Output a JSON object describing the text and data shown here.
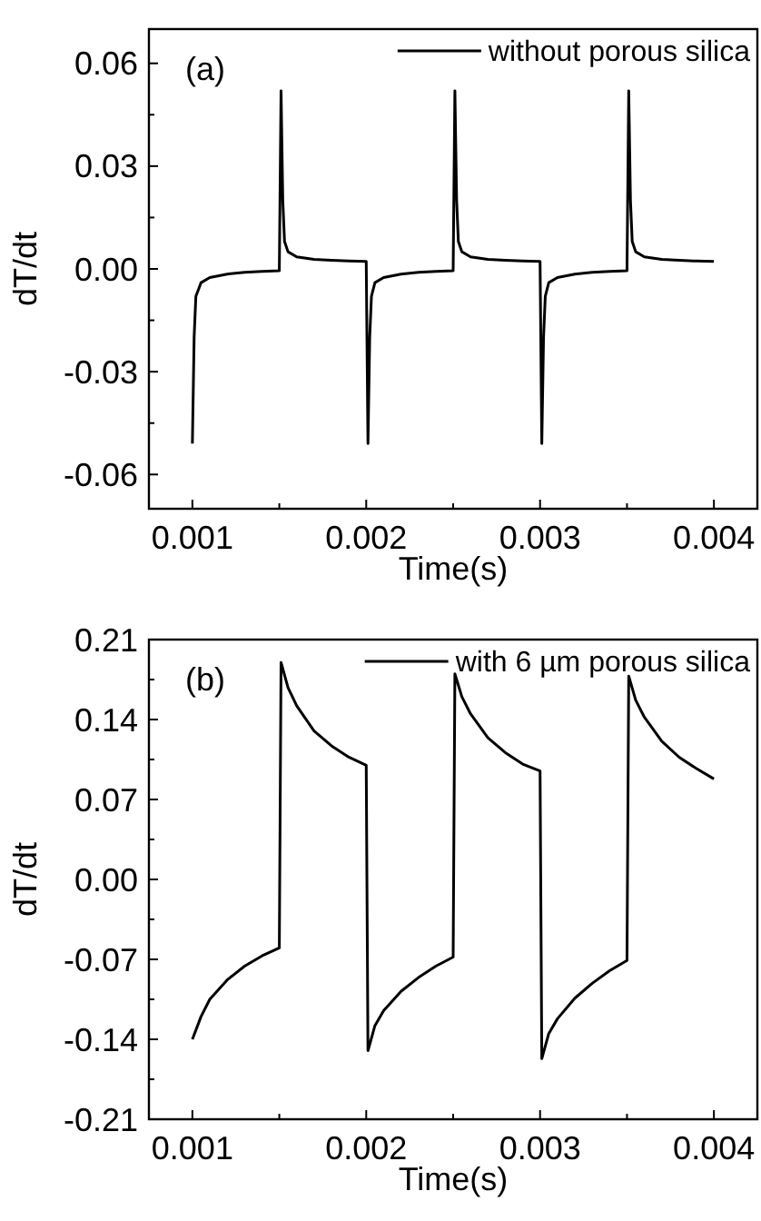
{
  "chart_data": [
    {
      "type": "line",
      "xlabel": "Time(s)",
      "ylabel": "dT/dt",
      "annotations": [
        "(a)"
      ],
      "legend": "top right",
      "xlim": [
        0.00075,
        0.00425
      ],
      "ylim": [
        -0.07,
        0.07
      ],
      "xticks": [
        0.001,
        {
          "value": 0.0015,
          "label": null
        },
        0.002,
        {
          "value": 0.0025,
          "label": null
        },
        0.003,
        {
          "value": 0.0035,
          "label": null
        },
        0.004
      ],
      "yticks": [
        -0.06,
        {
          "value": -0.045,
          "label": null
        },
        -0.03,
        {
          "value": -0.015,
          "label": null
        },
        {
          "value": 0,
          "label": "0.00"
        },
        {
          "value": 0.015,
          "label": null
        },
        0.03,
        {
          "value": 0.045,
          "label": null
        },
        0.06
      ],
      "series": [
        {
          "name": "without porous silica",
          "color": "#000000",
          "x": [
            0.001,
            0.00101,
            0.00102,
            0.00105,
            0.0011,
            0.0012,
            0.0013,
            0.0014,
            0.0015,
            0.00151,
            0.00152,
            0.00153,
            0.00155,
            0.0016,
            0.0017,
            0.0018,
            0.0019,
            0.002,
            0.00201,
            0.00202,
            0.00203,
            0.00205,
            0.0021,
            0.0022,
            0.0023,
            0.0024,
            0.0025,
            0.00251,
            0.00252,
            0.00253,
            0.00255,
            0.0026,
            0.0027,
            0.0028,
            0.0029,
            0.003,
            0.00301,
            0.00302,
            0.00303,
            0.00305,
            0.0031,
            0.0032,
            0.0033,
            0.0034,
            0.0035,
            0.00351,
            0.00352,
            0.00353,
            0.00355,
            0.0036,
            0.0037,
            0.0038,
            0.0039,
            0.004
          ],
          "values": [
            -0.051,
            -0.02,
            -0.008,
            -0.004,
            -0.0025,
            -0.0015,
            -0.001,
            -0.0007,
            -0.0005,
            0.052,
            0.02,
            0.008,
            0.005,
            0.0035,
            0.0028,
            0.0025,
            0.0023,
            0.0022,
            -0.051,
            -0.02,
            -0.008,
            -0.004,
            -0.0025,
            -0.0015,
            -0.001,
            -0.0007,
            -0.0005,
            0.052,
            0.02,
            0.008,
            0.005,
            0.0035,
            0.0028,
            0.0025,
            0.0023,
            0.0022,
            -0.051,
            -0.02,
            -0.008,
            -0.004,
            -0.0025,
            -0.0015,
            -0.001,
            -0.0007,
            -0.0005,
            0.052,
            0.02,
            0.008,
            0.005,
            0.0035,
            0.0028,
            0.0025,
            0.0023,
            0.0022
          ]
        }
      ]
    },
    {
      "type": "line",
      "xlabel": "Time(s)",
      "ylabel": "dT/dt",
      "annotations": [
        "(b)"
      ],
      "legend": "top right",
      "xlim": [
        0.00075,
        0.00425
      ],
      "ylim": [
        -0.21,
        0.21
      ],
      "xticks": [
        0.001,
        {
          "value": 0.0015,
          "label": null
        },
        0.002,
        {
          "value": 0.0025,
          "label": null
        },
        0.003,
        {
          "value": 0.0035,
          "label": null
        },
        0.004
      ],
      "yticks": [
        -0.21,
        {
          "value": -0.175,
          "label": null
        },
        -0.14,
        {
          "value": -0.105,
          "label": null
        },
        -0.07,
        {
          "value": -0.035,
          "label": null
        },
        {
          "value": 0,
          "label": "0.00"
        },
        {
          "value": 0.035,
          "label": null
        },
        0.07,
        {
          "value": 0.105,
          "label": null
        },
        0.14,
        {
          "value": 0.175,
          "label": null
        },
        0.21
      ],
      "series": [
        {
          "name": "with 6 µm porous silica",
          "color": "#000000",
          "x": [
            0.001,
            0.00105,
            0.0011,
            0.0012,
            0.0013,
            0.0014,
            0.0015,
            0.00151,
            0.00155,
            0.0016,
            0.0017,
            0.0018,
            0.0019,
            0.002,
            0.00201,
            0.00205,
            0.0021,
            0.0022,
            0.0023,
            0.0024,
            0.0025,
            0.00251,
            0.00255,
            0.0026,
            0.0027,
            0.0028,
            0.0029,
            0.003,
            0.00301,
            0.00305,
            0.0031,
            0.0032,
            0.0033,
            0.0034,
            0.0035,
            0.00351,
            0.00355,
            0.0036,
            0.0037,
            0.0038,
            0.0039,
            0.004
          ],
          "values": [
            -0.14,
            -0.12,
            -0.105,
            -0.088,
            -0.076,
            -0.067,
            -0.06,
            0.19,
            0.168,
            0.152,
            0.13,
            0.117,
            0.107,
            0.1,
            -0.15,
            -0.128,
            -0.115,
            -0.098,
            -0.086,
            -0.076,
            -0.068,
            0.18,
            0.16,
            0.145,
            0.124,
            0.111,
            0.101,
            0.095,
            -0.157,
            -0.135,
            -0.122,
            -0.104,
            -0.091,
            -0.08,
            -0.071,
            0.178,
            0.157,
            0.142,
            0.121,
            0.107,
            0.097,
            0.088
          ]
        }
      ]
    }
  ]
}
